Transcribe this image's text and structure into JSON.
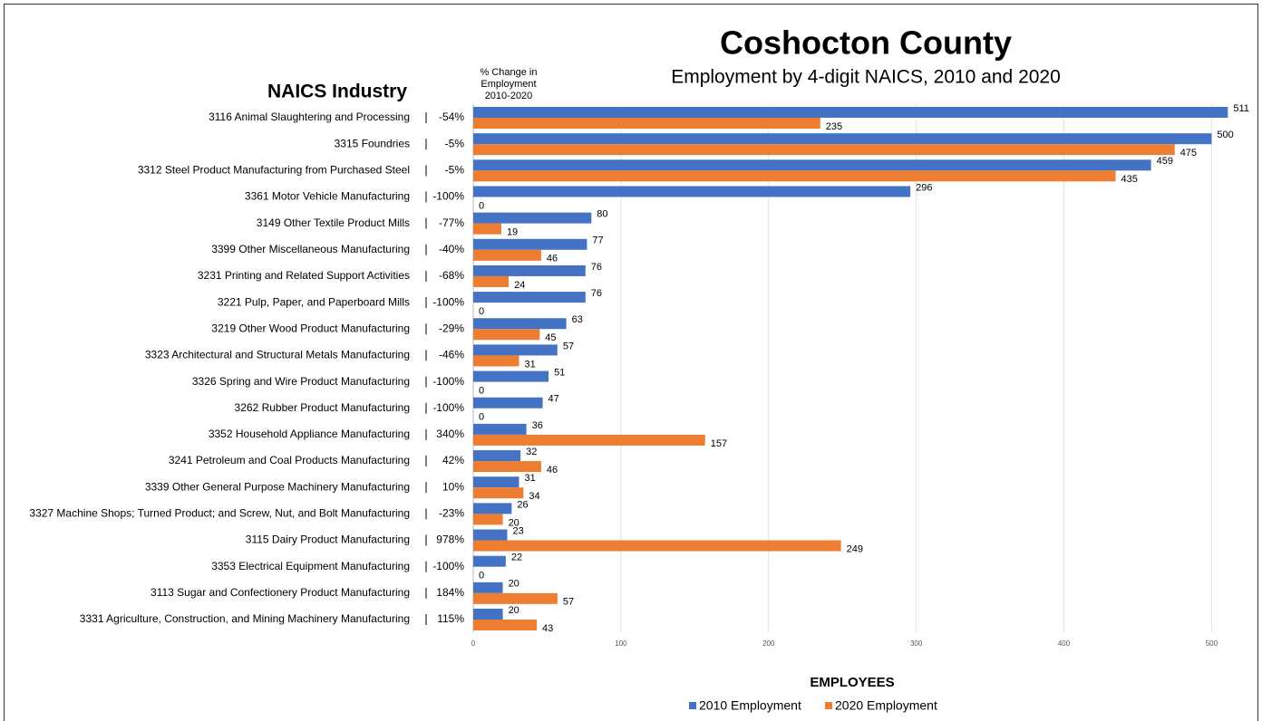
{
  "chart_data": {
    "type": "barh",
    "title": "Coshocton County",
    "subtitle": "Employment by 4-digit NAICS, 2010 and 2020",
    "category_header": "NAICS Industry",
    "change_header": [
      "% Change in",
      "Employment",
      "2010-2020"
    ],
    "xlabel": "EMPLOYEES",
    "categories": [
      "3116 Animal Slaughtering and Processing",
      "3315 Foundries",
      "3312 Steel Product Manufacturing from Purchased Steel",
      "3361 Motor Vehicle Manufacturing",
      "3149 Other Textile Product Mills",
      "3399 Other Miscellaneous Manufacturing",
      "3231 Printing and Related Support Activities",
      "3221 Pulp, Paper, and Paperboard Mills",
      "3219 Other Wood Product Manufacturing",
      "3323 Architectural and Structural Metals Manufacturing",
      "3326 Spring and Wire Product Manufacturing",
      "3262 Rubber Product Manufacturing",
      "3352 Household Appliance Manufacturing",
      "3241 Petroleum and Coal Products Manufacturing",
      "3339 Other General Purpose Machinery Manufacturing",
      "3327 Machine Shops; Turned Product; and Screw, Nut, and Bolt Manufacturing",
      "3115 Dairy Product Manufacturing",
      "3353 Electrical Equipment Manufacturing",
      "3113 Sugar and Confectionery Product Manufacturing",
      "3331 Agriculture, Construction, and Mining Machinery Manufacturing"
    ],
    "change_labels": [
      "-54%",
      "-5%",
      "-5%",
      "-100%",
      "-77%",
      "-40%",
      "-68%",
      "-100%",
      "-29%",
      "-46%",
      "-100%",
      "-100%",
      "340%",
      "42%",
      "10%",
      "-23%",
      "978%",
      "-100%",
      "184%",
      "115%"
    ],
    "series": [
      {
        "name": "2010 Employment",
        "color": "#4472c4",
        "values": [
          511,
          500,
          459,
          296,
          80,
          77,
          76,
          76,
          63,
          57,
          51,
          47,
          36,
          32,
          31,
          26,
          23,
          22,
          20,
          20
        ]
      },
      {
        "name": "2020 Employment",
        "color": "#ed7d31",
        "values": [
          235,
          475,
          435,
          0,
          19,
          46,
          24,
          0,
          45,
          31,
          0,
          0,
          157,
          46,
          34,
          20,
          249,
          0,
          57,
          43
        ]
      }
    ],
    "xlim": [
      0,
      520
    ],
    "xticks": [
      0,
      100,
      200,
      300,
      400,
      500
    ],
    "grid": true,
    "legend": "bottom"
  }
}
